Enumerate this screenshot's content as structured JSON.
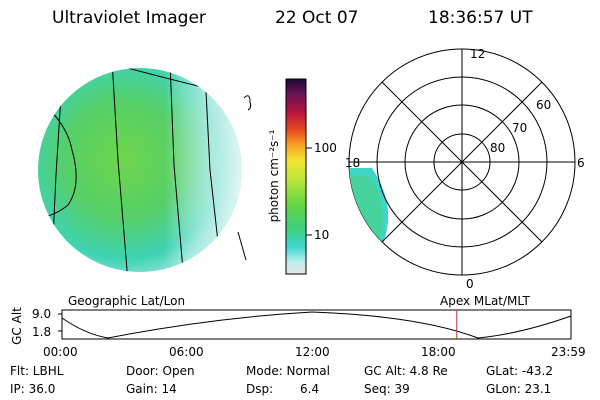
{
  "header": {
    "instrument": "Ultraviolet Imager",
    "date": "22 Oct 07",
    "time": "18:36:57 UT"
  },
  "colorbar": {
    "unit_label": "photon cm⁻²s⁻¹",
    "ticks": [
      "100",
      "10"
    ]
  },
  "polar_plot": {
    "mlt_labels": [
      "12",
      "18",
      "6",
      "0"
    ],
    "lat_labels": [
      "60",
      "70",
      "80"
    ]
  },
  "panels": {
    "left_caption": "Geographic Lat/Lon",
    "right_caption": "Apex MLat/MLT"
  },
  "altitude_plot": {
    "ylabel": "GC Alt",
    "yticks": [
      "9.0",
      "1.8"
    ],
    "xticks": [
      "00:00",
      "06:00",
      "12:00",
      "18:00",
      "23:59"
    ],
    "current_time_marker_hours": 18.6,
    "marker_color": "#c0392b"
  },
  "status": {
    "filter": "Flt: LBHL",
    "ip": "IP: 36.0",
    "door": "Door: Open",
    "gain": "Gain: 14",
    "mode": "Mode: Normal",
    "dsp_label": "Dsp:",
    "dsp_value": "6.4",
    "gc_alt": "GC Alt: 4.8 Re",
    "seq": "Seq: 39",
    "glat": "GLat: -43.2",
    "glon": "GLon: 23.1"
  }
}
